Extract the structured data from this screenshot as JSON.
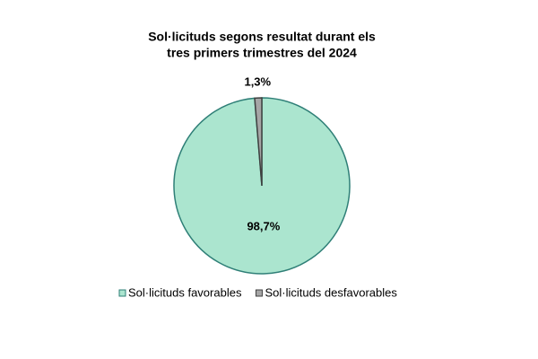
{
  "chart_data": {
    "type": "pie",
    "title": [
      "Sol·licituds segons resultat durant els",
      "tres primers trimestres del 2024"
    ],
    "categories": [
      "Sol·licituds favorables",
      "Sol·licituds desfavorables"
    ],
    "values": [
      98.7,
      1.3
    ],
    "value_labels": [
      "98,7%",
      "1,3%"
    ],
    "colors": [
      "#abe5cf",
      "#a6a6a6"
    ],
    "edge_colors": [
      "#2f7f77",
      "#404040"
    ],
    "legend": "bottom"
  }
}
